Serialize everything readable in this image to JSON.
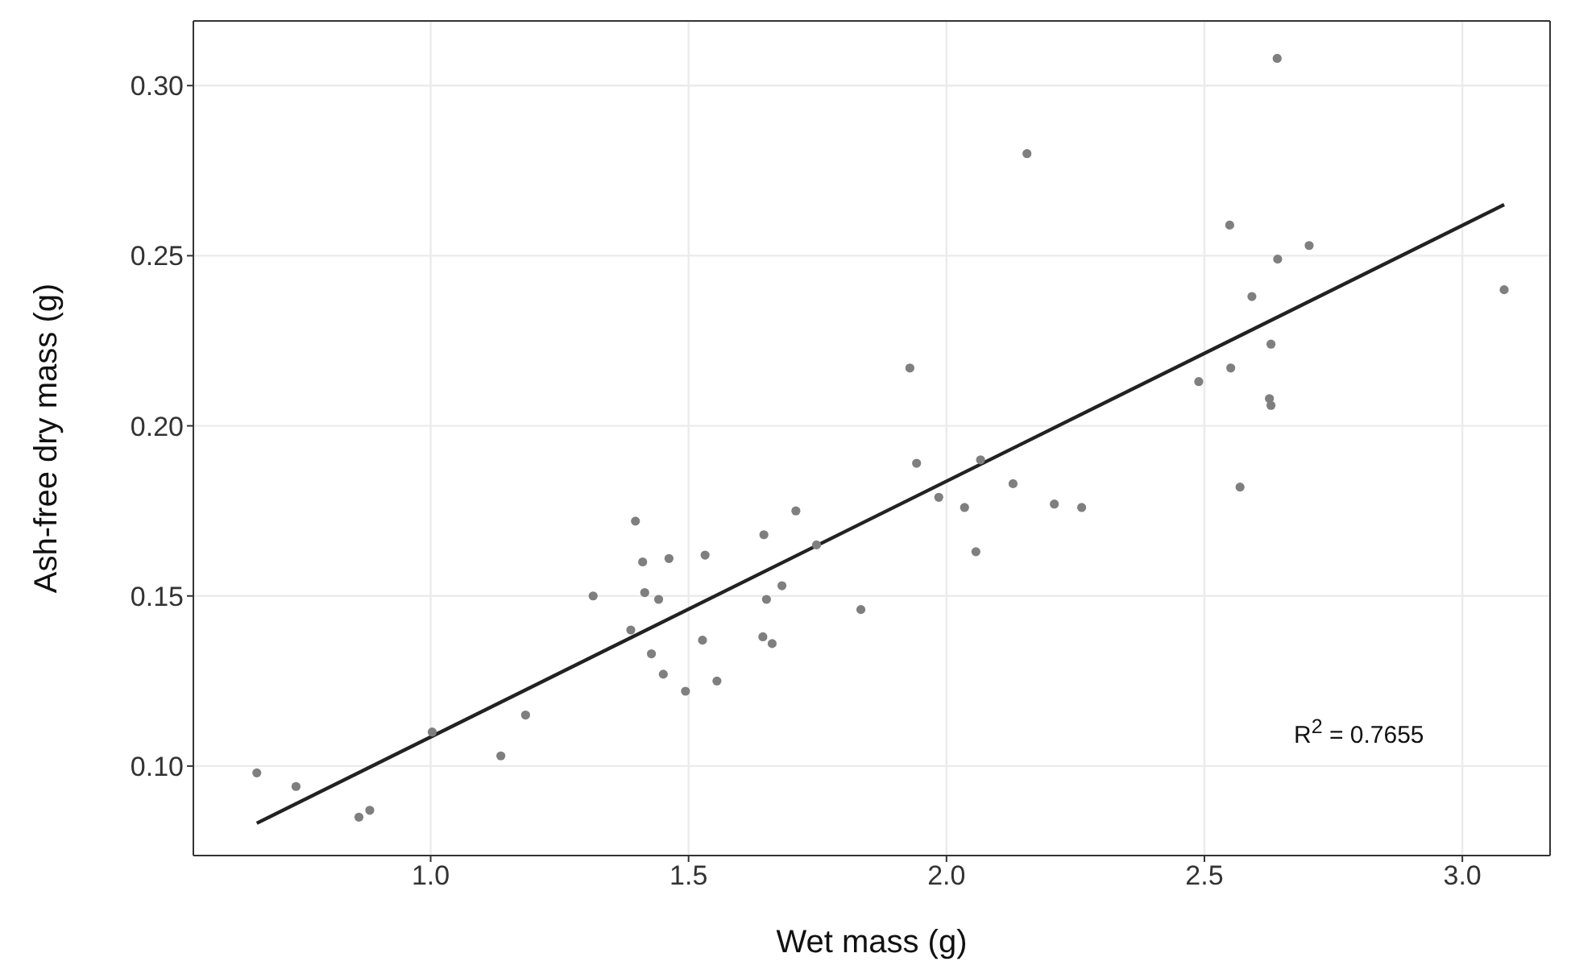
{
  "chart_data": {
    "type": "scatter",
    "xlabel": "Wet mass (g)",
    "ylabel": "Ash-free dry mass (g)",
    "xlim": [
      0.54,
      3.17
    ],
    "ylim": [
      0.0737,
      0.319
    ],
    "xticks": [
      {
        "value": 1,
        "label": "1.0"
      },
      {
        "value": 1.5,
        "label": "1.5"
      },
      {
        "value": 2,
        "label": "2.0"
      },
      {
        "value": 2.5,
        "label": "2.5"
      },
      {
        "value": 3,
        "label": "3.0"
      }
    ],
    "yticks": [
      {
        "value": 0.1,
        "label": "0.10"
      },
      {
        "value": 0.15,
        "label": "0.15"
      },
      {
        "value": 0.2,
        "label": "0.20"
      },
      {
        "value": 0.25,
        "label": "0.25"
      },
      {
        "value": 0.3,
        "label": "0.30"
      }
    ],
    "grid": true,
    "annotations": [
      "R$^{2}$ = 0.7655"
    ],
    "series": [
      {
        "marker": "circle",
        "color": "#7f7f7f",
        "x": [
          0.663,
          0.739,
          0.861,
          0.882,
          1.003,
          1.136,
          1.184,
          1.315,
          1.397,
          1.411,
          1.415,
          1.388,
          1.442,
          1.462,
          1.428,
          1.451,
          1.494,
          1.532,
          1.527,
          1.555,
          1.646,
          1.651,
          1.644,
          1.662,
          1.681,
          1.708,
          1.748,
          1.834,
          1.942,
          1.985,
          2.035,
          2.057,
          2.066,
          2.129,
          2.209,
          2.262,
          2.569,
          2.641,
          2.156,
          1.929,
          2.549,
          2.703,
          2.642,
          2.592,
          3.081,
          2.629,
          2.551,
          2.489,
          2.626,
          2.629
        ],
        "values": [
          0.098,
          0.094,
          0.085,
          0.087,
          0.11,
          0.103,
          0.115,
          0.15,
          0.172,
          0.16,
          0.151,
          0.14,
          0.149,
          0.161,
          0.133,
          0.127,
          0.122,
          0.162,
          0.137,
          0.125,
          0.168,
          0.149,
          0.138,
          0.136,
          0.153,
          0.175,
          0.165,
          0.146,
          0.189,
          0.179,
          0.176,
          0.163,
          0.19,
          0.183,
          0.177,
          0.176,
          0.182,
          0.308,
          0.28,
          0.217,
          0.259,
          0.253,
          0.249,
          0.238,
          0.24,
          0.224,
          0.217,
          0.213,
          0.208,
          0.206
        ]
      },
      {
        "type": "line",
        "color": "#222222",
        "x": [
          0.663,
          3.081
        ],
        "values": [
          0.0832,
          0.265
        ]
      }
    ]
  }
}
